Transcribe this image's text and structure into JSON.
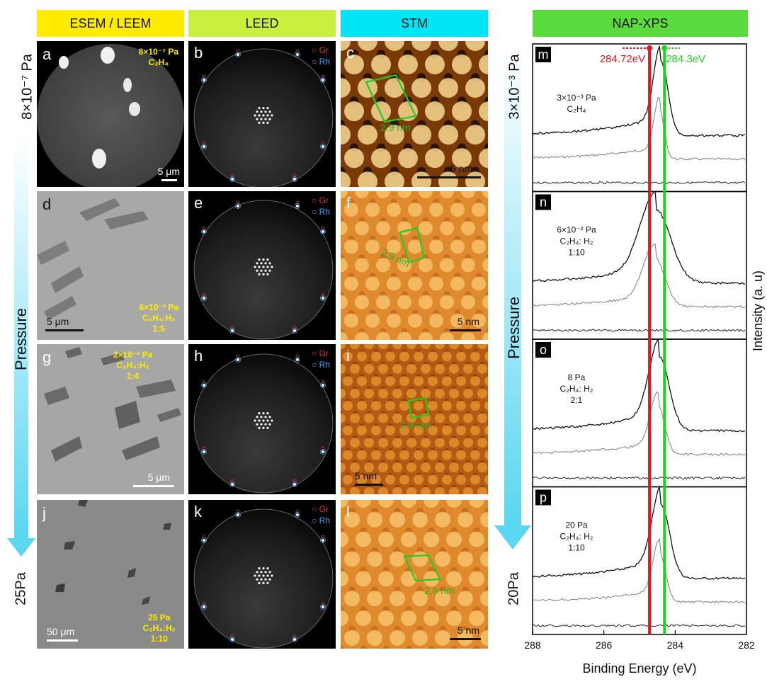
{
  "headers": {
    "esem": "ESEM / LEEM",
    "leed": "LEED",
    "stm": "STM",
    "xps": "NAP-XPS"
  },
  "header_colors": {
    "esem": "#ffeb00",
    "leed": "#c8f03c",
    "stm": "#00e5f5",
    "xps": "#5cdc3c"
  },
  "left_axis": {
    "top": "8×10⁻⁷ Pa",
    "middle": "Pressure",
    "bottom": "25Pa"
  },
  "xps_axis": {
    "top": "3×10⁻³ Pa",
    "middle": "Pressure",
    "bottom": "20Pa"
  },
  "panels": {
    "a": {
      "label": "a",
      "cond": [
        "8×10⁻⁷ Pa",
        "C₂H₄"
      ],
      "scale": "5 μm"
    },
    "b": {
      "label": "b",
      "gr": "Gr",
      "rh": "Rh"
    },
    "c": {
      "label": "c",
      "lattice": "2.9 nm",
      "scale": "5 nm"
    },
    "d": {
      "label": "d",
      "cond": [
        "6×10⁻³ Pa",
        "C₂H₄:H₂",
        "1:5"
      ],
      "scale": "5 μm"
    },
    "e": {
      "label": "e",
      "gr": "Gr",
      "rh": "Rh"
    },
    "f": {
      "label": "f",
      "lattice": "2.9 nm",
      "scale": "5 nm"
    },
    "g": {
      "label": "g",
      "cond": [
        "2×10⁻² Pa",
        "C₂H₄:H₂",
        "1:4"
      ],
      "scale": "5 μm"
    },
    "h": {
      "label": "h",
      "gr": "Gr",
      "rh": "Rh"
    },
    "i": {
      "label": "i",
      "lattice": "2.9 nm",
      "scale": "5 nm"
    },
    "j": {
      "label": "j",
      "cond": [
        "25 Pa",
        "C₂H₄:H₂",
        "1:10"
      ],
      "scale": "50 μm"
    },
    "k": {
      "label": "k",
      "gr": "Gr",
      "rh": "Rh"
    },
    "l": {
      "label": "l",
      "lattice": "2.9 nm",
      "scale": "5 nm"
    }
  },
  "chart_data": {
    "type": "line",
    "xlabel": "Binding Energy (eV)",
    "ylabel": "Intensity (a. u)",
    "xlim": [
      288,
      282
    ],
    "xticks": [
      288,
      286,
      284,
      282
    ],
    "reference_lines": [
      {
        "label": "284.72eV",
        "x": 284.72,
        "color": "#e8141e"
      },
      {
        "label": "284.3eV",
        "x": 284.3,
        "color": "#22d022"
      }
    ],
    "subplots": [
      {
        "label": "m",
        "conditions": [
          "3×10⁻³ Pa",
          "C₂H₄"
        ],
        "peak_center": 284.4,
        "peak_width": 0.28
      },
      {
        "label": "n",
        "conditions": [
          "6×10⁻² Pa",
          "C₂H₄: H₂",
          "1:10"
        ],
        "peak_center": 284.55,
        "peak_width": 0.6
      },
      {
        "label": "o",
        "conditions": [
          "8 Pa",
          "C₂H₄: H₂",
          "2:1"
        ],
        "peak_center": 284.45,
        "peak_width": 0.4
      },
      {
        "label": "p",
        "conditions": [
          "20 Pa",
          "C₂H₄: H₂",
          "1:10"
        ],
        "peak_center": 284.4,
        "peak_width": 0.35
      }
    ]
  }
}
